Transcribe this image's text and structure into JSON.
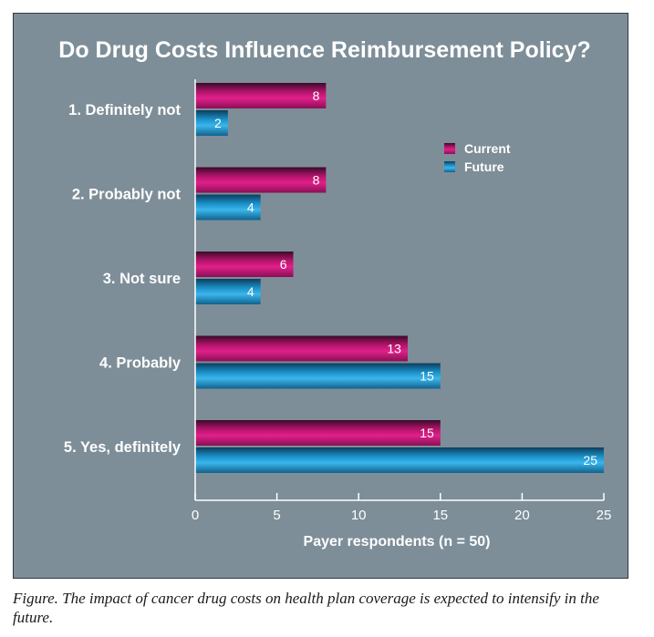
{
  "chart_data": {
    "type": "bar",
    "orientation": "horizontal",
    "title": "Do Drug Costs Influence Reimbursement Policy?",
    "categories": [
      "1. Definitely not",
      "2. Probably not",
      "3. Not sure",
      "4. Probably",
      "5. Yes, definitely"
    ],
    "series": [
      {
        "name": "Current",
        "color": "#c0166f",
        "values": [
          8,
          8,
          6,
          13,
          15
        ]
      },
      {
        "name": "Future",
        "color": "#1a8fc6",
        "values": [
          2,
          4,
          4,
          15,
          25
        ]
      }
    ],
    "xlabel": "Payer respondents (n = 50)",
    "ylabel": "",
    "xlim": [
      0,
      25
    ],
    "xticks": [
      0,
      5,
      10,
      15,
      20,
      25
    ],
    "legend_position": "right",
    "grid": false
  },
  "caption": "Figure. The impact of cancer drug costs on health plan coverage is expected to intensify in the future."
}
